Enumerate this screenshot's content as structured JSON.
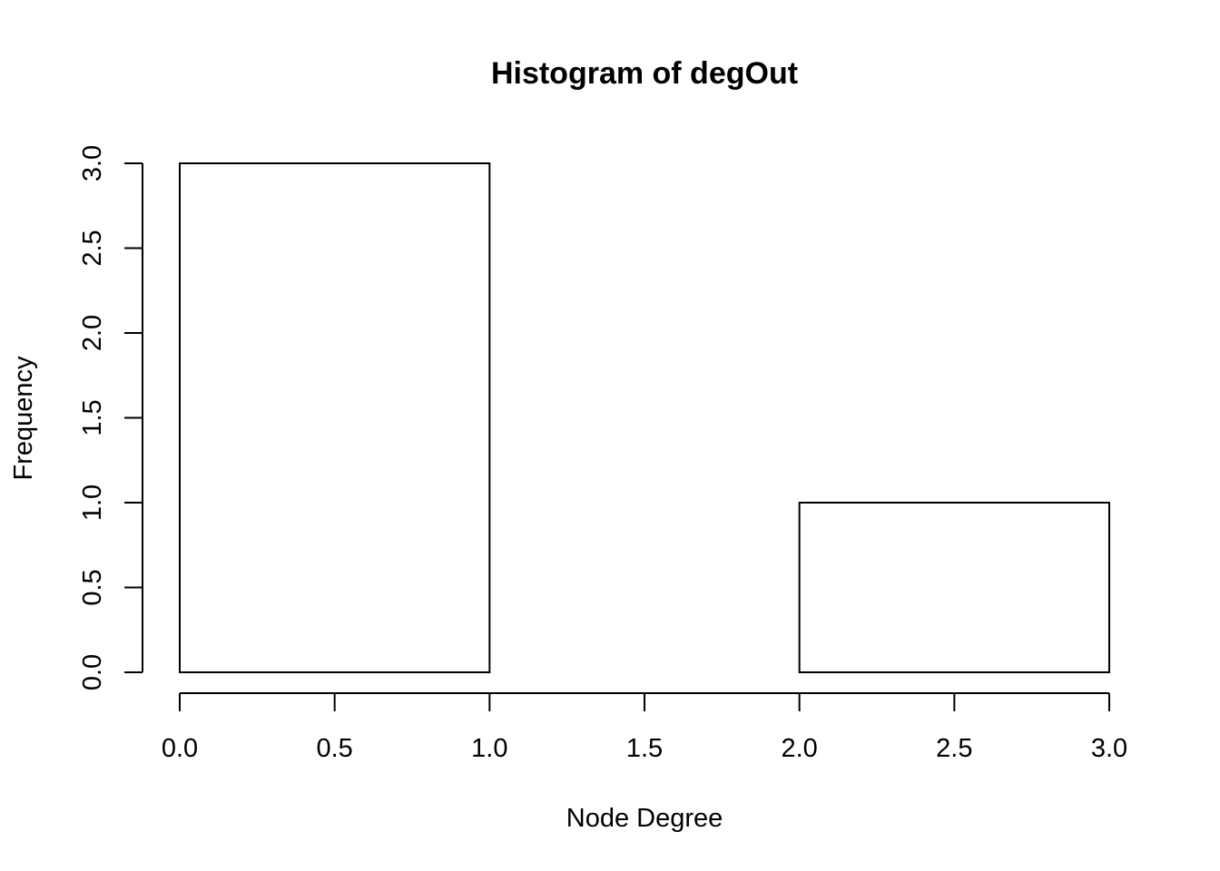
{
  "chart_data": {
    "type": "bar",
    "title": "Histogram of degOut",
    "xlabel": "Node Degree",
    "ylabel": "Frequency",
    "bins": [
      {
        "x0": 0,
        "x1": 1,
        "count": 3
      },
      {
        "x0": 1,
        "x1": 2,
        "count": 0
      },
      {
        "x0": 2,
        "x1": 3,
        "count": 1
      }
    ],
    "xlim": [
      0,
      3
    ],
    "ylim": [
      0,
      3
    ],
    "x_ticks": [
      "0.0",
      "0.5",
      "1.0",
      "1.5",
      "2.0",
      "2.5",
      "3.0"
    ],
    "y_ticks": [
      "0.0",
      "0.5",
      "1.0",
      "1.5",
      "2.0",
      "2.5",
      "3.0"
    ],
    "grid": false,
    "bar_fill": "#ffffff",
    "bar_stroke": "#000000"
  }
}
